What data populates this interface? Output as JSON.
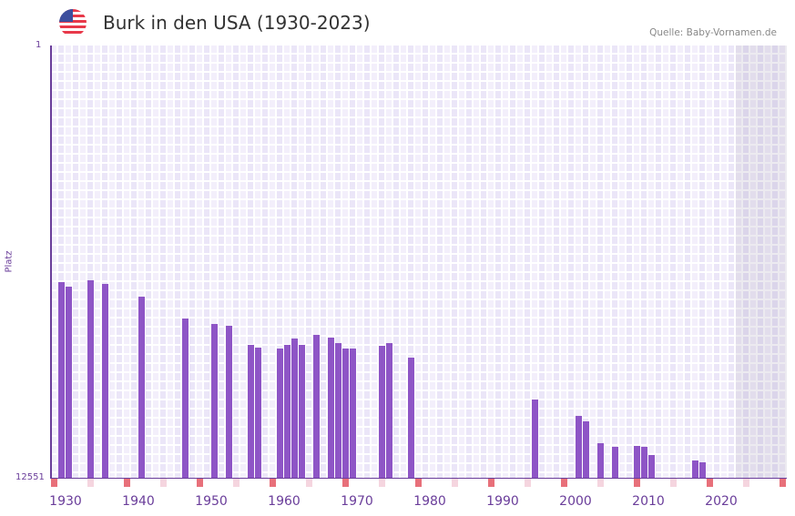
{
  "header": {
    "title": "Burk in den USA (1930-2023)",
    "source": "Quelle: Baby-Vornamen.de",
    "flag_icon": "us-flag-icon"
  },
  "colors": {
    "bar": "#8e55c6",
    "axis": "#6a3d9a",
    "decade_marker": "#e8707a",
    "half_decade_marker": "#f5d5df"
  },
  "chart_data": {
    "type": "bar",
    "title": "Burk in den USA (1930-2023)",
    "xlabel": "",
    "ylabel": "Platz",
    "y_inverted": true,
    "ylim": [
      1,
      12551
    ],
    "ytick_labels": [
      "1",
      "12551"
    ],
    "xlim": [
      1929,
      2029
    ],
    "xtick_labels": [
      "1930",
      "1940",
      "1950",
      "1960",
      "1970",
      "1980",
      "1990",
      "2000",
      "2010",
      "2020"
    ],
    "incomplete_from": 2023,
    "x": [
      1930,
      1931,
      1934,
      1936,
      1941,
      1947,
      1951,
      1953,
      1956,
      1957,
      1960,
      1961,
      1962,
      1963,
      1965,
      1967,
      1968,
      1969,
      1970,
      1974,
      1975,
      1978,
      1995,
      2001,
      2002,
      2004,
      2006,
      2009,
      2010,
      2011,
      2017,
      2018
    ],
    "values": [
      6870,
      7002,
      6817,
      6923,
      7292,
      7926,
      8085,
      8138,
      8692,
      8772,
      8798,
      8692,
      8508,
      8692,
      8402,
      8481,
      8640,
      8798,
      8798,
      8719,
      8640,
      9062,
      10278,
      10753,
      10912,
      11546,
      11652,
      11626,
      11652,
      11890,
      12048,
      12101
    ]
  }
}
